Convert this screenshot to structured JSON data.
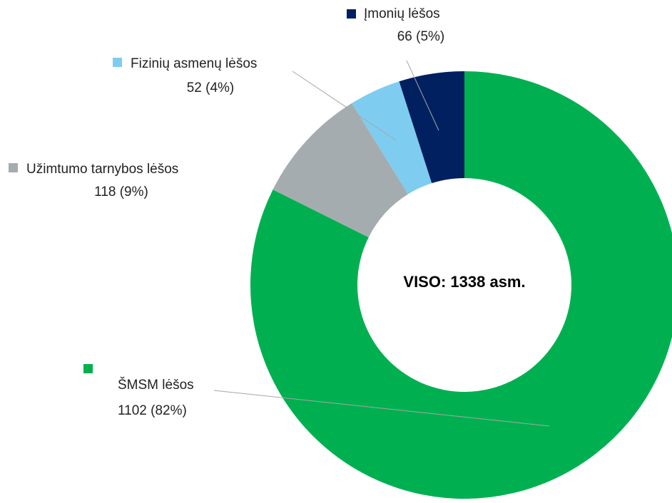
{
  "chart_data": {
    "type": "donut",
    "center_label": "VISO: 1338 asm.",
    "categories": [
      "ŠMSM lėšos",
      "Užimtumo tarnybos lėšos",
      "Fizinių asmenų lėšos",
      "Įmonių lėšos"
    ],
    "values": [
      1102,
      118,
      52,
      66
    ],
    "value_labels": [
      "1102 (82%)",
      "118 (9%)",
      "52 (4%)",
      "66 (5%)"
    ],
    "colors": [
      "#00b050",
      "#a5acb0",
      "#7ecdf0",
      "#002060"
    ]
  }
}
